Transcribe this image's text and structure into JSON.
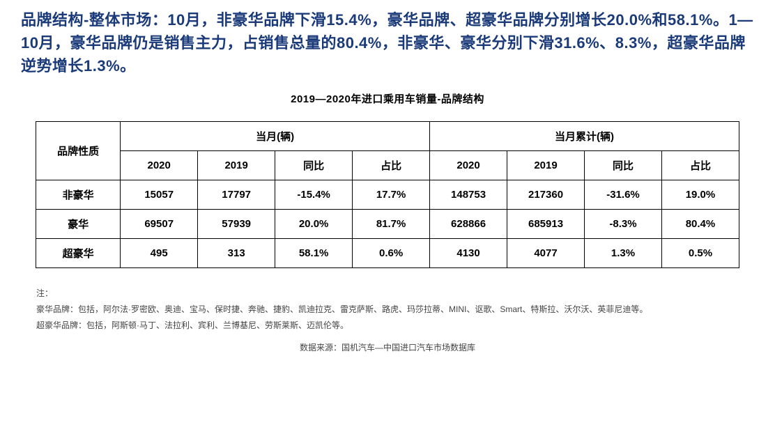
{
  "heading": "品牌结构-整体市场：10月，非豪华品牌下滑15.4%，豪华品牌、超豪华品牌分别增长20.0%和58.1%。1—10月，豪华品牌仍是销售主力，占销售总量的80.4%，非豪华、豪华分别下滑31.6%、8.3%，超豪华品牌逆势增长1.3%。",
  "table": {
    "title": "2019—2020年进口乘用车销量-品牌结构",
    "row_header_label": "品牌性质",
    "group1_label": "当月(辆)",
    "group2_label": "当月累计(辆)",
    "sub_headers": {
      "c1": "2020",
      "c2": "2019",
      "c3": "同比",
      "c4": "占比",
      "c5": "2020",
      "c6": "2019",
      "c7": "同比",
      "c8": "占比"
    },
    "rows": {
      "r1": {
        "label": "非豪华",
        "v1": "15057",
        "v2": "17797",
        "v3": "-15.4%",
        "v4": "17.7%",
        "v5": "148753",
        "v6": "217360",
        "v7": "-31.6%",
        "v8": "19.0%"
      },
      "r2": {
        "label": "豪华",
        "v1": "69507",
        "v2": "57939",
        "v3": "20.0%",
        "v4": "81.7%",
        "v5": "628866",
        "v6": "685913",
        "v7": "-8.3%",
        "v8": "80.4%"
      },
      "r3": {
        "label": "超豪华",
        "v1": "495",
        "v2": "313",
        "v3": "58.1%",
        "v4": "0.6%",
        "v5": "4130",
        "v6": "4077",
        "v7": "1.3%",
        "v8": "0.5%"
      }
    }
  },
  "notes": {
    "label": "注：",
    "line1": "豪华品牌：包括，阿尔法·罗密欧、奥迪、宝马、保时捷、奔驰、捷豹、凯迪拉克、雷克萨斯、路虎、玛莎拉蒂、MINI、讴歌、Smart、特斯拉、沃尔沃、英菲尼迪等。",
    "line2": "超豪华品牌：包括，阿斯顿·马丁、法拉利、宾利、兰博基尼、劳斯莱斯、迈凯伦等。"
  },
  "source": "数据来源：国机汽车—中国进口汽车市场数据库",
  "colors": {
    "heading": "#1a3a7a",
    "text": "#000000",
    "notes": "#444444",
    "background": "#ffffff",
    "border": "#000000"
  }
}
